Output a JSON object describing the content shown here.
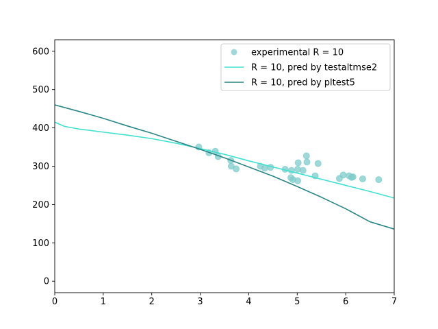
{
  "chart_data": {
    "type": "scatter",
    "title": "",
    "xlabel": "",
    "ylabel": "",
    "xlim": [
      0,
      7
    ],
    "ylim": [
      -30,
      630
    ],
    "xticks": [
      0,
      1,
      2,
      3,
      4,
      5,
      6,
      7
    ],
    "yticks": [
      0,
      100,
      200,
      300,
      400,
      500,
      600
    ],
    "grid": false,
    "legend_position": "top-right",
    "series": [
      {
        "name": "experimental R = 10",
        "kind": "scatter",
        "color": "#7fcbcb",
        "points": [
          [
            2.97,
            350
          ],
          [
            3.18,
            335
          ],
          [
            3.31,
            339
          ],
          [
            3.37,
            325
          ],
          [
            3.63,
            315
          ],
          [
            3.64,
            300
          ],
          [
            3.74,
            293
          ],
          [
            4.24,
            300
          ],
          [
            4.33,
            295
          ],
          [
            4.45,
            297
          ],
          [
            4.75,
            292
          ],
          [
            4.87,
            270
          ],
          [
            4.88,
            289
          ],
          [
            4.91,
            265
          ],
          [
            5.01,
            262
          ],
          [
            5.01,
            292
          ],
          [
            5.02,
            309
          ],
          [
            5.12,
            289
          ],
          [
            5.19,
            327
          ],
          [
            5.2,
            311
          ],
          [
            5.37,
            275
          ],
          [
            5.43,
            307
          ],
          [
            5.87,
            268
          ],
          [
            5.95,
            277
          ],
          [
            6.07,
            275
          ],
          [
            6.12,
            271
          ],
          [
            6.15,
            272
          ],
          [
            6.35,
            267
          ],
          [
            6.68,
            265
          ]
        ]
      },
      {
        "name": "R = 10, pred by testaltmse2",
        "kind": "line",
        "color": "#40e0d0",
        "x": [
          0,
          0.2,
          0.5,
          1,
          1.5,
          2,
          2.5,
          3,
          3.5,
          4,
          4.5,
          5,
          5.5,
          6,
          6.5,
          7
        ],
        "y": [
          415,
          404,
          397,
          389,
          381,
          372,
          360,
          346,
          331,
          314,
          298,
          282,
          266,
          250,
          234,
          217
        ]
      },
      {
        "name": "R = 10, pred by pltest5",
        "kind": "line",
        "color": "#2a8585",
        "x": [
          0,
          0.5,
          1,
          1.5,
          2,
          2.5,
          3,
          3.5,
          4,
          4.5,
          5,
          5.5,
          6,
          6.5,
          7
        ],
        "y": [
          460,
          443,
          425,
          405,
          386,
          365,
          344,
          322,
          298,
          274,
          247,
          219,
          189,
          155,
          136
        ]
      }
    ]
  }
}
